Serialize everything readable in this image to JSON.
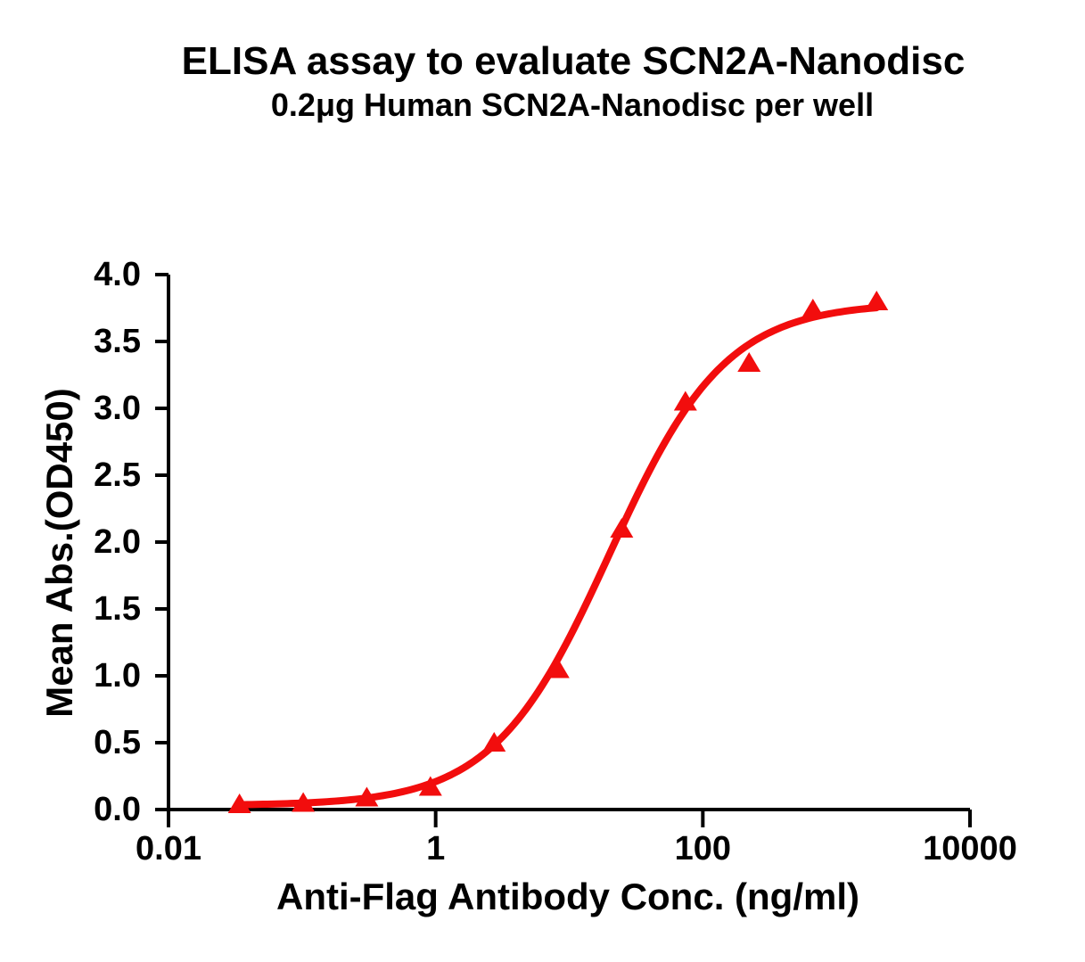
{
  "page": {
    "background": "#ffffff"
  },
  "chart_data": {
    "type": "scatter",
    "title": "ELISA assay to evaluate SCN2A-Nanodisc",
    "subtitle": "0.2μg Human SCN2A-Nanodisc per well",
    "xlabel": "Anti-Flag Antibody Conc. (ng/ml)",
    "ylabel": "Mean Abs.(OD450)",
    "x_scale": "log10",
    "xlim": [
      0.01,
      10000
    ],
    "ylim": [
      0.0,
      4.0
    ],
    "grid": false,
    "legend": false,
    "x_ticks": [
      {
        "value": 0.01,
        "label": "0.01"
      },
      {
        "value": 1,
        "label": "1"
      },
      {
        "value": 100,
        "label": "100"
      },
      {
        "value": 10000,
        "label": "10000"
      }
    ],
    "y_ticks": [
      {
        "value": 0.0,
        "label": "0.0"
      },
      {
        "value": 0.5,
        "label": "0.5"
      },
      {
        "value": 1.0,
        "label": "1.0"
      },
      {
        "value": 1.5,
        "label": "1.5"
      },
      {
        "value": 2.0,
        "label": "2.0"
      },
      {
        "value": 2.5,
        "label": "2.5"
      },
      {
        "value": 3.0,
        "label": "3.0"
      },
      {
        "value": 3.5,
        "label": "3.5"
      },
      {
        "value": 4.0,
        "label": "4.0"
      }
    ],
    "series": [
      {
        "marker": "triangle-up",
        "color": "#f20d0d",
        "points": [
          {
            "x": 0.034,
            "y": 0.04
          },
          {
            "x": 0.102,
            "y": 0.05
          },
          {
            "x": 0.305,
            "y": 0.09
          },
          {
            "x": 0.914,
            "y": 0.17
          },
          {
            "x": 2.74,
            "y": 0.5
          },
          {
            "x": 8.23,
            "y": 1.05
          },
          {
            "x": 24.7,
            "y": 2.1
          },
          {
            "x": 74.1,
            "y": 3.05
          },
          {
            "x": 222,
            "y": 3.34
          },
          {
            "x": 667,
            "y": 3.74
          },
          {
            "x": 2000,
            "y": 3.8
          }
        ]
      }
    ],
    "fit_curve": {
      "model": "4PL",
      "bottom": 0.03,
      "top": 3.79,
      "ec50": 20,
      "hill": 1.0,
      "x_start": 0.034,
      "x_end": 2000
    }
  },
  "colors": {
    "series": "#f20d0d",
    "axis": "#000000",
    "text": "#000000"
  }
}
